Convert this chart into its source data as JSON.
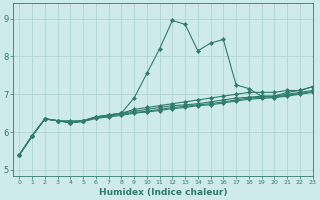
{
  "xlabel": "Humidex (Indice chaleur)",
  "bg_color": "#ceeaea",
  "grid_color": "#aacfcf",
  "line_color": "#2e7d6e",
  "xlim": [
    -0.5,
    23
  ],
  "ylim": [
    4.85,
    9.4
  ],
  "yticks": [
    5,
    6,
    7,
    8,
    9
  ],
  "xticks": [
    0,
    1,
    2,
    3,
    4,
    5,
    6,
    7,
    8,
    9,
    10,
    11,
    12,
    13,
    14,
    15,
    16,
    17,
    18,
    19,
    20,
    21,
    22,
    23
  ],
  "series": [
    [
      5.4,
      5.9,
      6.35,
      6.3,
      6.3,
      6.3,
      6.4,
      6.45,
      6.5,
      6.9,
      7.55,
      8.2,
      8.95,
      8.85,
      8.15,
      8.35,
      8.45,
      7.25,
      7.15,
      6.95,
      6.95,
      7.05,
      7.1,
      7.2
    ],
    [
      5.4,
      5.9,
      6.35,
      6.3,
      6.25,
      6.3,
      6.4,
      6.45,
      6.5,
      6.6,
      6.65,
      6.7,
      6.75,
      6.8,
      6.85,
      6.9,
      6.95,
      7.0,
      7.05,
      7.05,
      7.05,
      7.1,
      7.1,
      7.2
    ],
    [
      5.4,
      5.9,
      6.35,
      6.3,
      6.25,
      6.3,
      6.4,
      6.45,
      6.5,
      6.55,
      6.6,
      6.65,
      6.7,
      6.72,
      6.75,
      6.8,
      6.85,
      6.9,
      6.92,
      6.95,
      6.95,
      7.0,
      7.05,
      7.1
    ],
    [
      5.4,
      5.9,
      6.35,
      6.3,
      6.25,
      6.28,
      6.38,
      6.42,
      6.47,
      6.52,
      6.55,
      6.6,
      6.65,
      6.68,
      6.72,
      6.75,
      6.8,
      6.85,
      6.9,
      6.92,
      6.93,
      6.97,
      7.02,
      7.07
    ],
    [
      5.4,
      5.9,
      6.35,
      6.3,
      6.25,
      6.28,
      6.36,
      6.4,
      6.44,
      6.5,
      6.53,
      6.57,
      6.62,
      6.65,
      6.7,
      6.72,
      6.77,
      6.82,
      6.87,
      6.89,
      6.91,
      6.95,
      7.0,
      7.05
    ]
  ],
  "marker": "D",
  "markersize": 2.2,
  "linewidth": 0.8,
  "xlabel_fontsize": 6.5,
  "tick_fontsize_x": 4.5,
  "tick_fontsize_y": 6.0
}
